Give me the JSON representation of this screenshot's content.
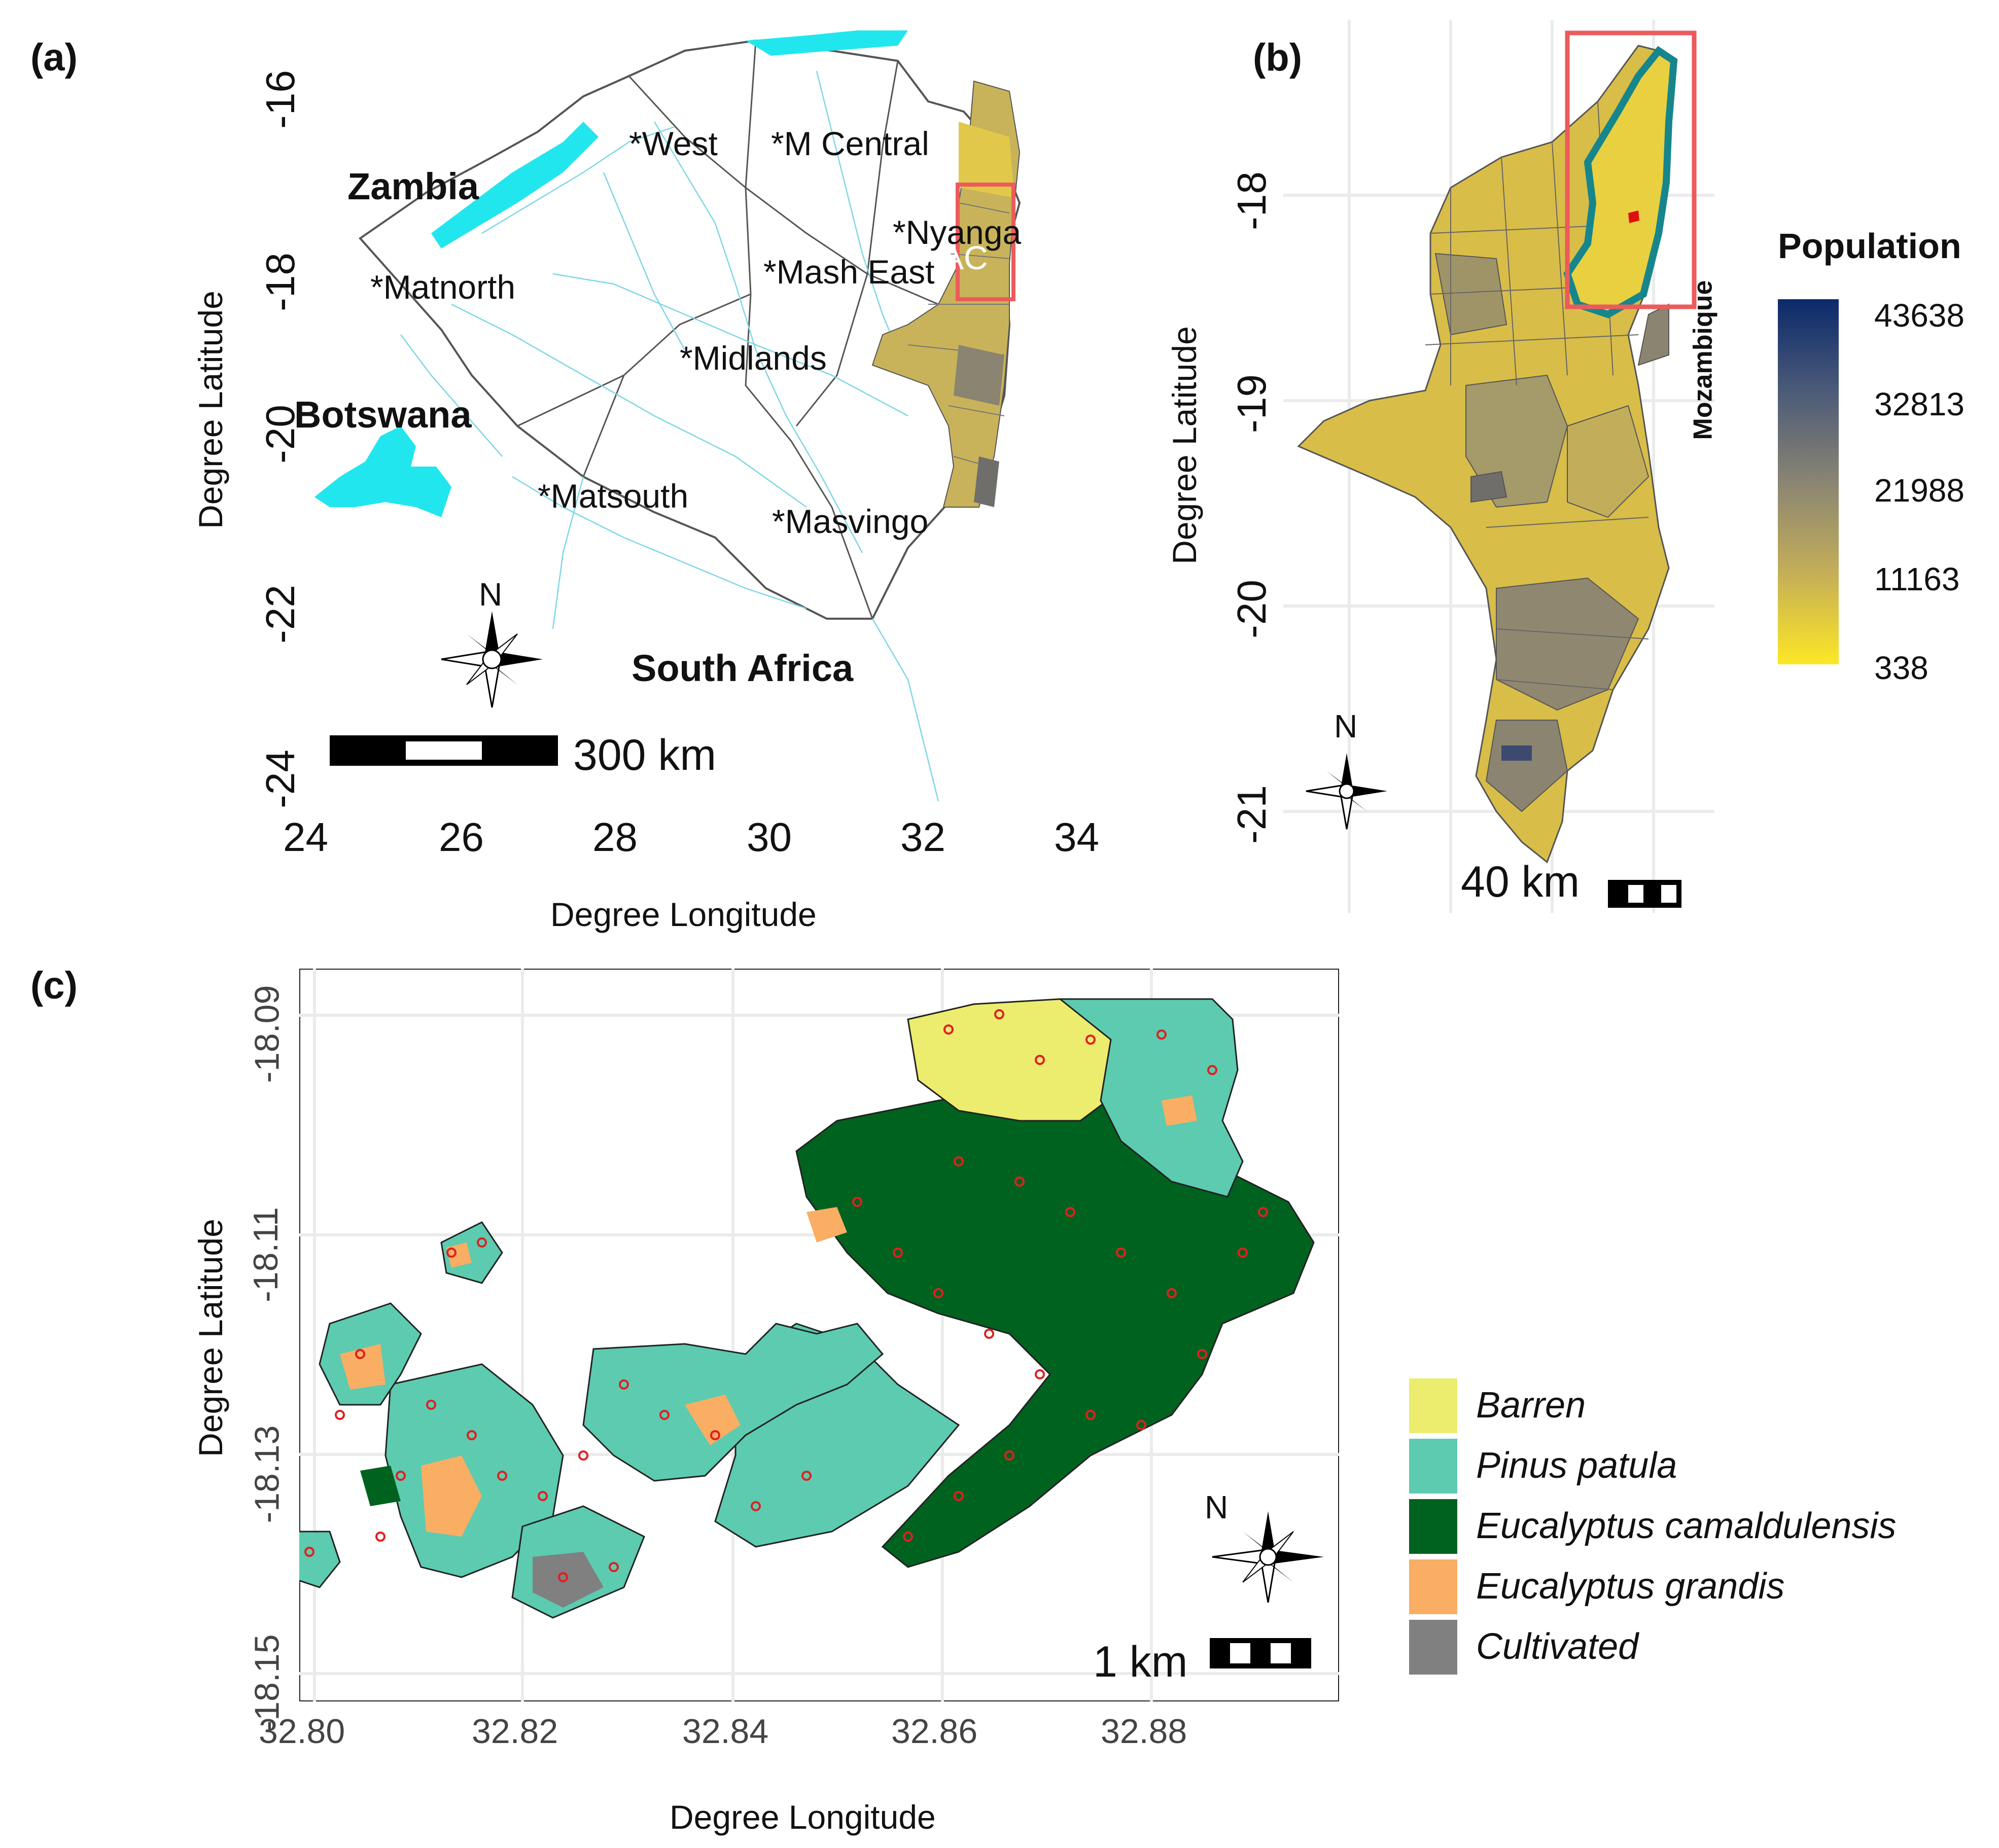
{
  "panels": {
    "a": {
      "label": "(a)",
      "x_title": "Degree Longitude",
      "y_title": "Degree Latitude",
      "x_ticks": [
        "24",
        "26",
        "28",
        "30",
        "32",
        "34"
      ],
      "y_ticks": [
        "-16",
        "-18",
        "-20",
        "-22",
        "-24"
      ],
      "countries": [
        "Zambia",
        "Botswana",
        "South Africa"
      ],
      "provinces": [
        "*West",
        "*M Central",
        "*Nyanga",
        "*Mash East",
        "*Matnorth",
        "*Midlands",
        "*Matsouth",
        "*Masvingo"
      ],
      "inset_label": "AC",
      "north": "N",
      "scale": "300 km"
    },
    "b": {
      "label": "(b)",
      "y_title": "Degree Latitude",
      "y_ticks": [
        "-18",
        "-19",
        "-20",
        "-21"
      ],
      "country": "Mozambique",
      "north": "N",
      "scale": "40 km",
      "legend": {
        "title": "Population",
        "breaks": [
          "43638",
          "32813",
          "21988",
          "11163",
          "338"
        ],
        "colors": [
          "#0b2a6b",
          "#4b5a78",
          "#8a8573",
          "#c4ae58",
          "#fde725"
        ]
      }
    },
    "c": {
      "label": "(c)",
      "x_title": "Degree Longitude",
      "y_title": "Degree Latitude",
      "x_ticks": [
        "32.80",
        "32.82",
        "32.84",
        "32.86",
        "32.88"
      ],
      "y_ticks": [
        "-18.09",
        "-18.11",
        "-18.13",
        "-18.15"
      ],
      "north": "N",
      "scale": "1 km",
      "legend": [
        {
          "label": "Barren",
          "color": "#ecec6e"
        },
        {
          "label": "Pinus patula",
          "color": "#5ccbb0"
        },
        {
          "label": "Eucalyptus camaldulensis",
          "color": "#00621f"
        },
        {
          "label": "Eucalyptus grandis",
          "color": "#f9ae64"
        },
        {
          "label": "Cultivated",
          "color": "#808080"
        }
      ]
    }
  }
}
